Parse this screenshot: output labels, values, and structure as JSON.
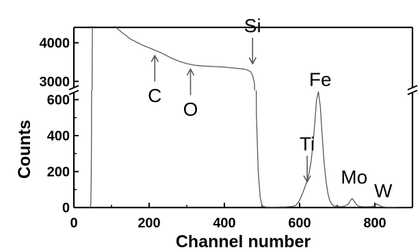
{
  "chart_data": {
    "type": "line",
    "title": "",
    "xlabel": "Channel number",
    "ylabel": "Counts",
    "x_range": [
      0,
      900
    ],
    "x_ticks": [
      0,
      200,
      400,
      600,
      800
    ],
    "broken_y_axis": true,
    "upper_panel": {
      "y_range": [
        2800,
        4400
      ],
      "y_ticks": [
        3000,
        4000
      ]
    },
    "lower_panel": {
      "y_range": [
        0,
        640
      ],
      "y_ticks": [
        0,
        200,
        400,
        600
      ]
    },
    "grid": false,
    "legend": "none",
    "line_color": "#555555",
    "series": [
      {
        "x": [
          40,
          43,
          45,
          46,
          47,
          48,
          50,
          55,
          60,
          70,
          80,
          90,
          100,
          110,
          120,
          130,
          140,
          150,
          160,
          170,
          180,
          190,
          200,
          210,
          220,
          230,
          240,
          250,
          260,
          270,
          280,
          290,
          300,
          310,
          320,
          330,
          340,
          350,
          360,
          370,
          380,
          390,
          400,
          410,
          420,
          430,
          440,
          450,
          460,
          470,
          475,
          480,
          485,
          490,
          495,
          500,
          505,
          510,
          520,
          530,
          540,
          550,
          560,
          570,
          580,
          590,
          600,
          610,
          615,
          620,
          625,
          630,
          635,
          640,
          645,
          650,
          655,
          660,
          665,
          670,
          675,
          680,
          685,
          690,
          700,
          710,
          720,
          730,
          735,
          740,
          745,
          750,
          755,
          760,
          770,
          780,
          790,
          800,
          805,
          810,
          815,
          820,
          830,
          850,
          870,
          890
        ],
        "y": [
          0,
          0,
          20,
          150,
          400,
          2000,
          6000,
          6000,
          5600,
          5200,
          4900,
          4700,
          4550,
          4420,
          4330,
          4250,
          4180,
          4100,
          4050,
          4000,
          3950,
          3910,
          3870,
          3830,
          3790,
          3750,
          3700,
          3650,
          3600,
          3560,
          3520,
          3490,
          3460,
          3440,
          3420,
          3410,
          3400,
          3395,
          3390,
          3385,
          3380,
          3375,
          3370,
          3360,
          3350,
          3340,
          3330,
          3320,
          3300,
          3250,
          3150,
          2950,
          520,
          200,
          60,
          10,
          5,
          3,
          2,
          2,
          2,
          3,
          3,
          4,
          6,
          12,
          40,
          90,
          120,
          150,
          190,
          250,
          340,
          460,
          600,
          645,
          560,
          400,
          250,
          150,
          80,
          40,
          20,
          10,
          6,
          5,
          8,
          20,
          40,
          50,
          35,
          20,
          10,
          6,
          4,
          4,
          5,
          10,
          20,
          15,
          8,
          4,
          2,
          1,
          0,
          0
        ]
      }
    ],
    "annotations": [
      {
        "label": "Si",
        "x": 475,
        "y": 3350,
        "arrow": "down"
      },
      {
        "label": "C",
        "x": 215,
        "y": 3810,
        "arrow": "up"
      },
      {
        "label": "O",
        "x": 310,
        "y": 3460,
        "arrow": "up"
      },
      {
        "label": "Ti",
        "x": 620,
        "y": 120,
        "arrow": "down"
      },
      {
        "label": "Fe",
        "x": 655,
        "y": 645,
        "arrow": "none"
      },
      {
        "label": "Mo",
        "x": 745,
        "y": 50,
        "arrow": "none"
      },
      {
        "label": "W",
        "x": 815,
        "y": 20,
        "arrow": "none"
      }
    ]
  }
}
